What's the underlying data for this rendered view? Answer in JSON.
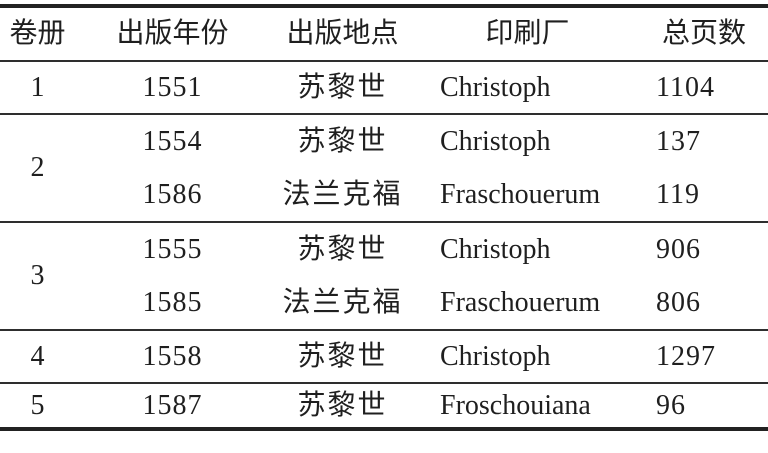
{
  "page": {
    "background_color": "#ffffff",
    "text_color": "#1f1f1f",
    "rule_color_thick": "#222222",
    "rule_color_thin": "#2e2e2e"
  },
  "table": {
    "headers": {
      "volume": "卷册",
      "year": "出版年份",
      "place": "出版地点",
      "printer": "印刷厂",
      "pages": "总页数"
    },
    "groups": [
      {
        "volume": "1",
        "rows": [
          {
            "year": "1551",
            "place": "苏黎世",
            "printer": "Christoph",
            "pages": "1104"
          }
        ]
      },
      {
        "volume": "2",
        "rows": [
          {
            "year": "1554",
            "place": "苏黎世",
            "printer": "Christoph",
            "pages": "137"
          },
          {
            "year": "1586",
            "place": "法兰克福",
            "printer": "Fraschouerum",
            "pages": "119"
          }
        ]
      },
      {
        "volume": "3",
        "rows": [
          {
            "year": "1555",
            "place": "苏黎世",
            "printer": "Christoph",
            "pages": "906"
          },
          {
            "year": "1585",
            "place": "法兰克福",
            "printer": "Fraschouerum",
            "pages": "806"
          }
        ]
      },
      {
        "volume": "4",
        "rows": [
          {
            "year": "1558",
            "place": "苏黎世",
            "printer": "Christoph",
            "pages": "1297"
          }
        ]
      },
      {
        "volume": "5",
        "rows": [
          {
            "year": "1587",
            "place": "苏黎世",
            "printer": "Froschouiana",
            "pages": "96"
          }
        ]
      }
    ]
  }
}
